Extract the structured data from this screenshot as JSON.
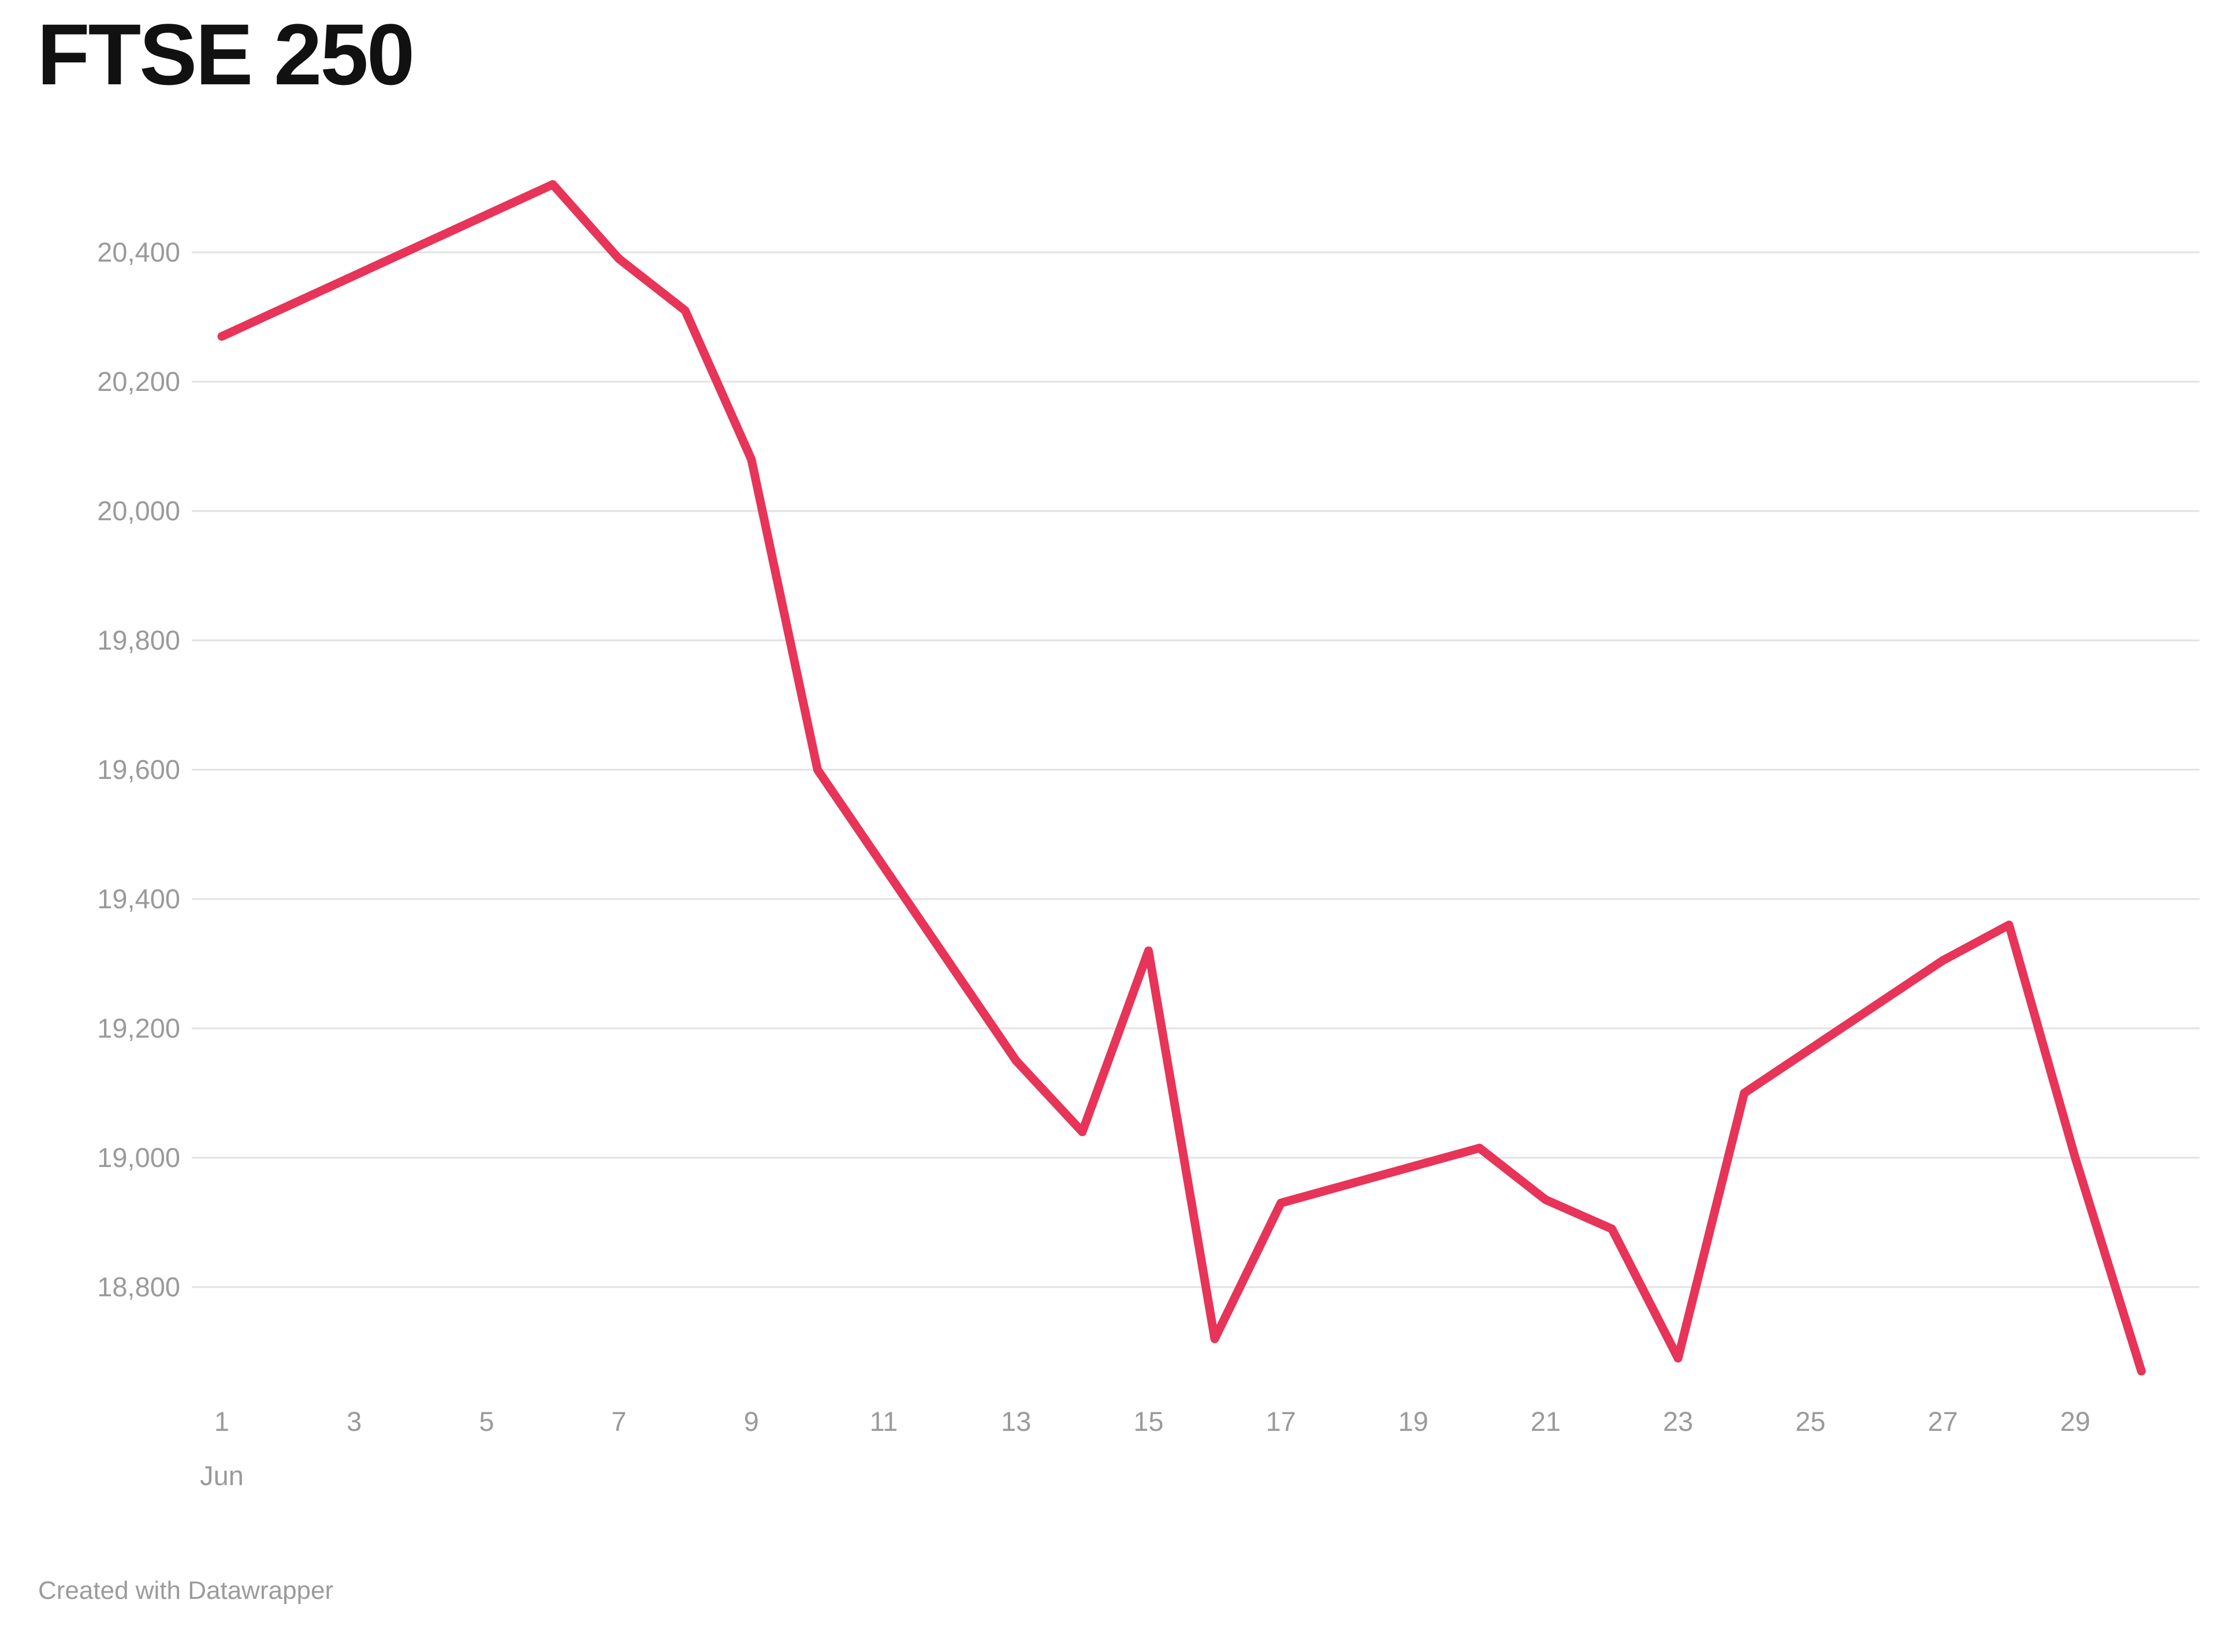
{
  "title": "FTSE 250",
  "footer": {
    "credit": "Created with Datawrapper"
  },
  "colors": {
    "line": "#e73458",
    "gridline": "#e2e2e2",
    "tick_text": "#9a9a9a",
    "title_text": "#111111",
    "background": "#ffffff"
  },
  "chart_data": {
    "type": "line",
    "title": "FTSE 250",
    "series": [
      {
        "name": "FTSE 250",
        "points": [
          {
            "day": 1,
            "value": 20270
          },
          {
            "day": 6,
            "value": 20505
          },
          {
            "day": 7,
            "value": 20390
          },
          {
            "day": 8,
            "value": 20310
          },
          {
            "day": 9,
            "value": 20080
          },
          {
            "day": 10,
            "value": 19600
          },
          {
            "day": 13,
            "value": 19150
          },
          {
            "day": 14,
            "value": 19040
          },
          {
            "day": 15,
            "value": 19320
          },
          {
            "day": 16,
            "value": 18720
          },
          {
            "day": 17,
            "value": 18930
          },
          {
            "day": 20,
            "value": 19015
          },
          {
            "day": 21,
            "value": 18935
          },
          {
            "day": 22,
            "value": 18890
          },
          {
            "day": 23,
            "value": 18690
          },
          {
            "day": 24,
            "value": 19100
          },
          {
            "day": 27,
            "value": 19305
          },
          {
            "day": 28,
            "value": 19360
          },
          {
            "day": 29,
            "value": 19000
          },
          {
            "day": 30,
            "value": 18670
          }
        ]
      }
    ],
    "xlabel": "",
    "ylabel": "",
    "month_label": "Jun",
    "x_ticks": [
      1,
      3,
      5,
      7,
      9,
      11,
      13,
      15,
      17,
      19,
      21,
      23,
      25,
      27,
      29
    ],
    "y_ticks": [
      {
        "value": 20400,
        "label": "20,400"
      },
      {
        "value": 20200,
        "label": "20,200"
      },
      {
        "value": 20000,
        "label": "20,000"
      },
      {
        "value": 19800,
        "label": "19,800"
      },
      {
        "value": 19600,
        "label": "19,600"
      },
      {
        "value": 19400,
        "label": "19,400"
      },
      {
        "value": 19200,
        "label": "19,200"
      },
      {
        "value": 19000,
        "label": "19,000"
      },
      {
        "value": 18800,
        "label": "18,800"
      }
    ],
    "xlim_days": [
      1,
      30
    ],
    "ylim": [
      18640,
      20560
    ],
    "grid": "horizontal-only",
    "legend": "none"
  }
}
